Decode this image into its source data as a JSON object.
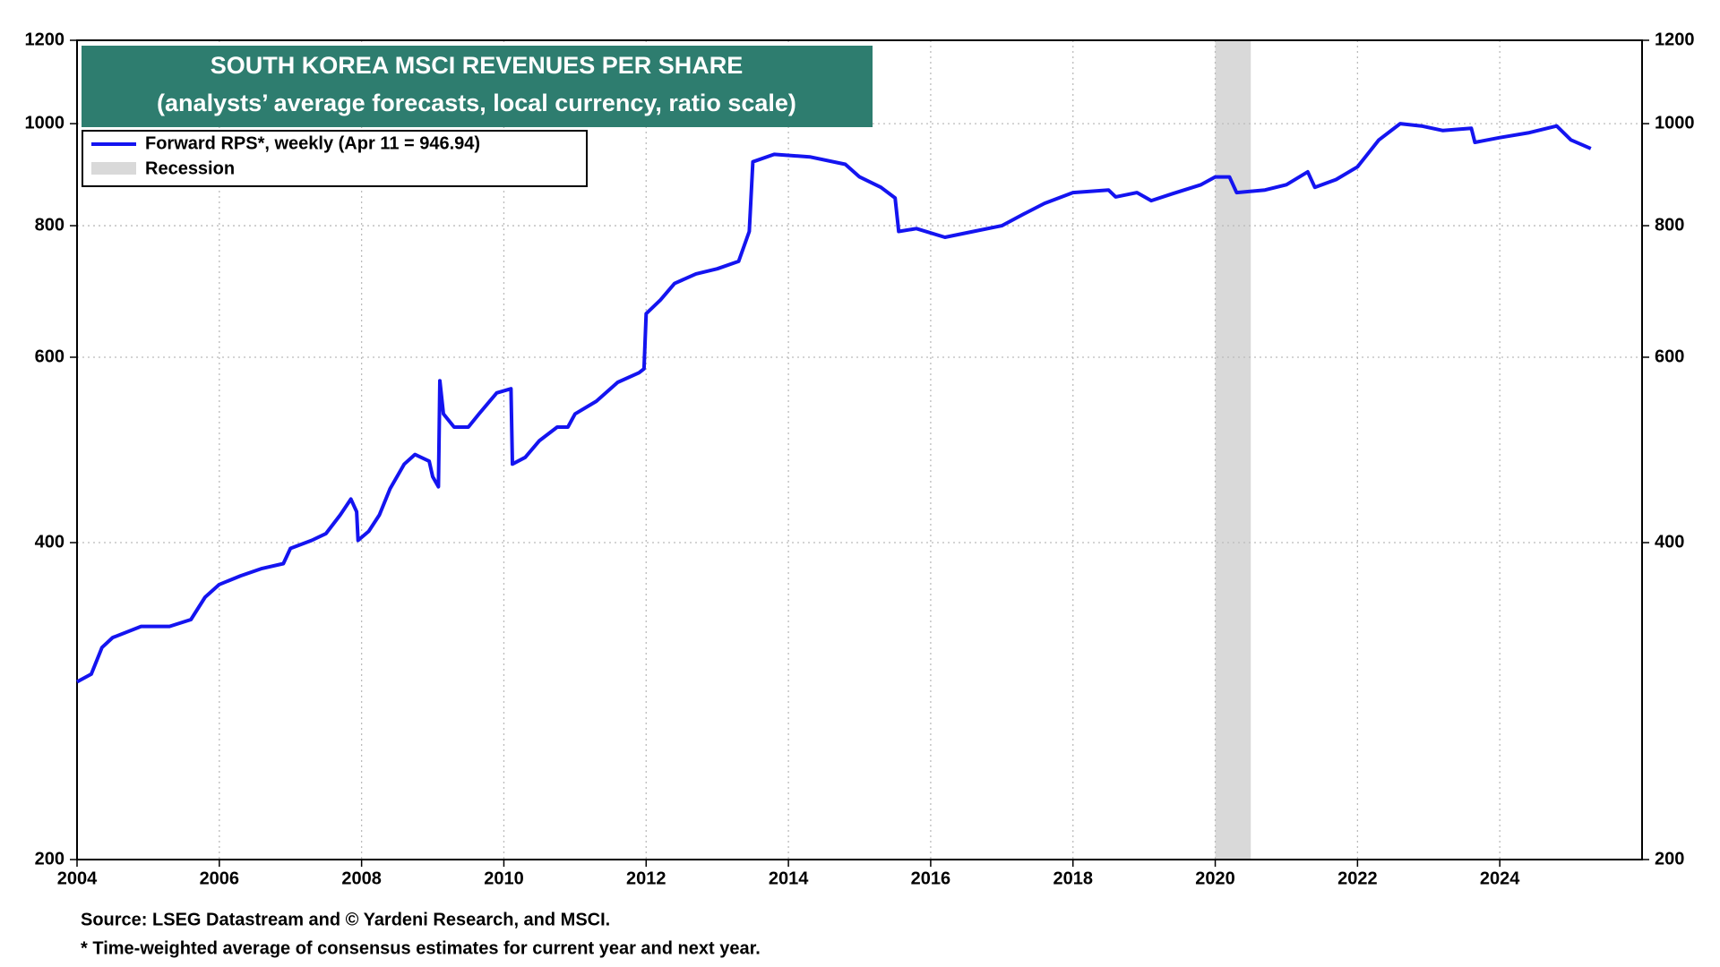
{
  "chart_data": {
    "type": "line",
    "title": "SOUTH KOREA MSCI REVENUES PER SHARE",
    "subtitle": "(analysts’ average forecasts, local currency, ratio scale)",
    "log_scale": true,
    "grid": true,
    "legend_position": "upper-left",
    "xlim": [
      2004,
      2026
    ],
    "xticks": [
      2004,
      2006,
      2008,
      2010,
      2012,
      2014,
      2016,
      2018,
      2020,
      2022,
      2024
    ],
    "ylim": [
      200,
      1200
    ],
    "yticks": [
      200,
      400,
      600,
      800,
      1000,
      1200
    ],
    "series": [
      {
        "name": "Forward RPS*, weekly (Apr 11 = 946.94)",
        "color": "#1414f0",
        "x": [
          2004.0,
          2004.2,
          2004.35,
          2004.5,
          2004.9,
          2005.3,
          2005.6,
          2005.8,
          2006.0,
          2006.3,
          2006.6,
          2006.9,
          2007.0,
          2007.3,
          2007.5,
          2007.7,
          2007.85,
          2007.93,
          2007.95,
          2008.1,
          2008.25,
          2008.4,
          2008.6,
          2008.75,
          2008.95,
          2009.0,
          2009.08,
          2009.1,
          2009.15,
          2009.3,
          2009.5,
          2009.65,
          2009.9,
          2010.1,
          2010.12,
          2010.3,
          2010.5,
          2010.75,
          2010.9,
          2011.0,
          2011.3,
          2011.6,
          2011.9,
          2011.97,
          2012.0,
          2012.2,
          2012.4,
          2012.7,
          2013.0,
          2013.3,
          2013.45,
          2013.5,
          2013.8,
          2014.3,
          2014.8,
          2015.0,
          2015.3,
          2015.5,
          2015.55,
          2015.8,
          2016.2,
          2016.6,
          2017.0,
          2017.3,
          2017.6,
          2018.0,
          2018.5,
          2018.6,
          2018.9,
          2019.1,
          2019.4,
          2019.8,
          2020.0,
          2020.2,
          2020.3,
          2020.7,
          2021.0,
          2021.3,
          2021.4,
          2021.7,
          2022.0,
          2022.3,
          2022.6,
          2022.9,
          2023.2,
          2023.6,
          2023.65,
          2024.0,
          2024.4,
          2024.8,
          2025.0,
          2025.28
        ],
        "values": [
          295,
          300,
          318,
          325,
          333,
          333,
          338,
          355,
          365,
          372,
          378,
          382,
          395,
          402,
          408,
          425,
          440,
          428,
          402,
          410,
          425,
          450,
          475,
          485,
          478,
          462,
          452,
          570,
          530,
          515,
          515,
          530,
          555,
          560,
          475,
          482,
          500,
          515,
          515,
          530,
          545,
          568,
          580,
          585,
          660,
          680,
          705,
          720,
          728,
          740,
          790,
          920,
          935,
          930,
          915,
          890,
          870,
          850,
          790,
          795,
          780,
          790,
          800,
          820,
          840,
          860,
          865,
          852,
          860,
          845,
          858,
          875,
          890,
          890,
          860,
          865,
          875,
          900,
          870,
          885,
          910,
          965,
          1000,
          995,
          985,
          990,
          960,
          970,
          980,
          995,
          965,
          946.94
        ]
      }
    ],
    "shading": {
      "name": "Recession",
      "color": "#d9d9d9",
      "x": [
        2020.0,
        2020.5
      ]
    },
    "notes": [
      "Source: LSEG Datastream and © Yardeni Research, and MSCI.",
      "* Time-weighted average of consensus estimates for current year and next year."
    ]
  }
}
